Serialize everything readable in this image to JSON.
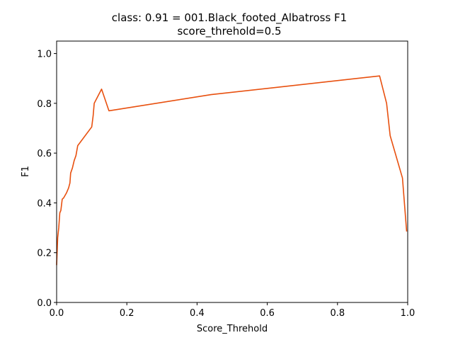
{
  "chart_data": {
    "type": "line",
    "title_line1": "class: 0.91 = 001.Black_footed_Albatross F1",
    "title_line2": "score_threhold=0.5",
    "xlabel": "Score_Threhold",
    "ylabel": "F1",
    "xlim": [
      0.0,
      1.0
    ],
    "ylim": [
      0.0,
      1.05
    ],
    "xticks": [
      0.0,
      0.2,
      0.4,
      0.6,
      0.8,
      1.0
    ],
    "xtick_labels": [
      "0.0",
      "0.2",
      "0.4",
      "0.6",
      "0.8",
      "1.0"
    ],
    "yticks": [
      0.0,
      0.2,
      0.4,
      0.6,
      0.8,
      1.0
    ],
    "ytick_labels": [
      "0.0",
      "0.2",
      "0.4",
      "0.6",
      "0.8",
      "1.0"
    ],
    "grid": false,
    "line_color": "#e8500f",
    "series": [
      {
        "x": [
          0.0,
          0.003,
          0.006,
          0.009,
          0.012,
          0.016,
          0.02,
          0.028,
          0.034,
          0.038,
          0.04,
          0.045,
          0.05,
          0.055,
          0.06,
          0.1,
          0.104,
          0.107,
          0.128,
          0.149,
          0.44,
          0.92,
          0.94,
          0.95,
          0.985,
          0.997
        ],
        "y": [
          0.15,
          0.26,
          0.3,
          0.36,
          0.37,
          0.415,
          0.42,
          0.44,
          0.46,
          0.48,
          0.52,
          0.54,
          0.57,
          0.59,
          0.63,
          0.705,
          0.75,
          0.8,
          0.857,
          0.77,
          0.835,
          0.91,
          0.8,
          0.67,
          0.5,
          0.285
        ]
      }
    ]
  }
}
